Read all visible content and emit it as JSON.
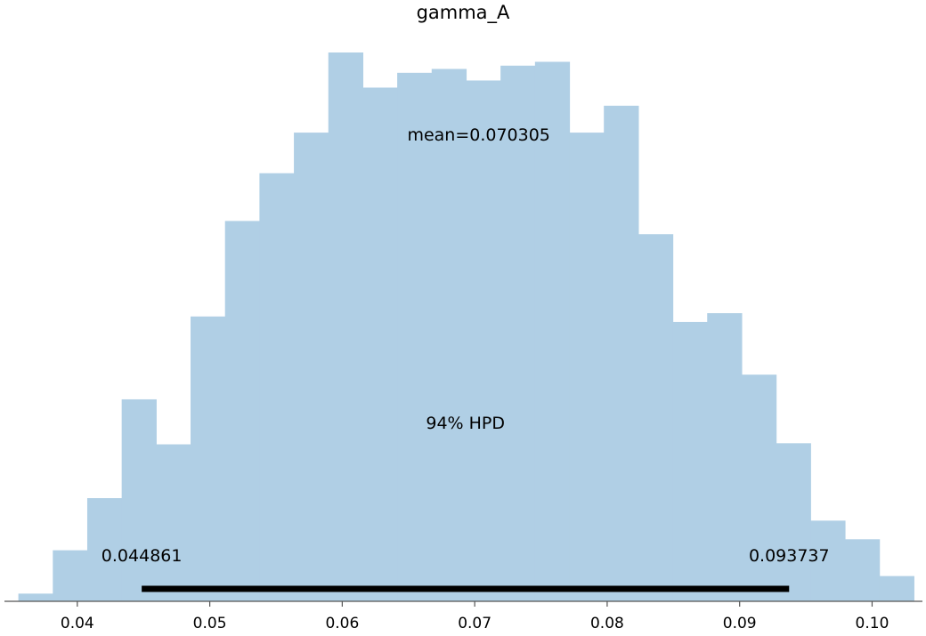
{
  "chart_data": {
    "type": "histogram",
    "title": "gamma_A",
    "xlim": [
      0.0345,
      0.1038
    ],
    "ylim": [
      0,
      100
    ],
    "bins": [
      {
        "x0": 0.03555,
        "x1": 0.03815,
        "value": 1.4
      },
      {
        "x0": 0.03815,
        "x1": 0.04075,
        "value": 9.3
      },
      {
        "x0": 0.04075,
        "x1": 0.04335,
        "value": 18.8
      },
      {
        "x0": 0.04335,
        "x1": 0.04595,
        "value": 36.8
      },
      {
        "x0": 0.04595,
        "x1": 0.04855,
        "value": 28.6
      },
      {
        "x0": 0.04855,
        "x1": 0.05115,
        "value": 51.9
      },
      {
        "x0": 0.05115,
        "x1": 0.05375,
        "value": 69.3
      },
      {
        "x0": 0.05375,
        "x1": 0.05635,
        "value": 78.0
      },
      {
        "x0": 0.05635,
        "x1": 0.05895,
        "value": 85.4
      },
      {
        "x0": 0.05895,
        "x1": 0.06155,
        "value": 100.0
      },
      {
        "x0": 0.06155,
        "x1": 0.06415,
        "value": 93.6
      },
      {
        "x0": 0.06415,
        "x1": 0.06675,
        "value": 96.3
      },
      {
        "x0": 0.06675,
        "x1": 0.06935,
        "value": 97.0
      },
      {
        "x0": 0.06935,
        "x1": 0.07195,
        "value": 94.9
      },
      {
        "x0": 0.07195,
        "x1": 0.07455,
        "value": 97.6
      },
      {
        "x0": 0.07455,
        "x1": 0.07715,
        "value": 98.3
      },
      {
        "x0": 0.07715,
        "x1": 0.07975,
        "value": 85.4
      },
      {
        "x0": 0.07975,
        "x1": 0.08235,
        "value": 90.3
      },
      {
        "x0": 0.08235,
        "x1": 0.08495,
        "value": 66.9
      },
      {
        "x0": 0.08495,
        "x1": 0.08755,
        "value": 50.9
      },
      {
        "x0": 0.08755,
        "x1": 0.09015,
        "value": 52.5
      },
      {
        "x0": 0.09015,
        "x1": 0.09275,
        "value": 41.3
      },
      {
        "x0": 0.09275,
        "x1": 0.09535,
        "value": 28.8
      },
      {
        "x0": 0.09535,
        "x1": 0.09795,
        "value": 14.7
      },
      {
        "x0": 0.09795,
        "x1": 0.10055,
        "value": 11.3
      },
      {
        "x0": 0.10055,
        "x1": 0.10315,
        "value": 4.6
      }
    ],
    "x_ticks": [
      0.04,
      0.05,
      0.06,
      0.07,
      0.08,
      0.09,
      0.1
    ],
    "x_tick_labels": [
      "0.04",
      "0.05",
      "0.06",
      "0.07",
      "0.08",
      "0.09",
      "0.10"
    ],
    "mean_label": "mean=0.070305",
    "mean_value": 0.070305,
    "hpd": {
      "label": "94% HPD",
      "low": 0.044861,
      "high": 0.093737,
      "low_label": "0.044861",
      "high_label": "0.093737"
    },
    "colors": {
      "bars": "#b0cfe5",
      "hpd_line": "#000000",
      "axis": "#555555"
    },
    "grid": false,
    "legend": "none"
  }
}
